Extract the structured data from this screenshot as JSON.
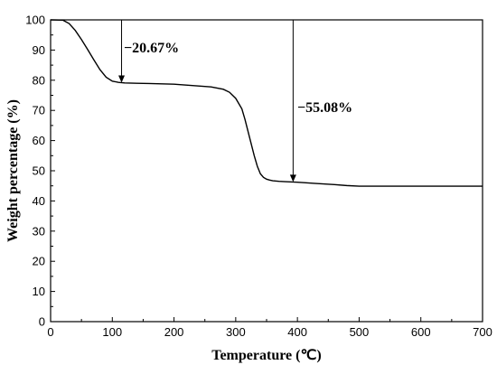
{
  "chart_data": {
    "type": "line",
    "title": "",
    "xlabel": "Temperature (℃)",
    "ylabel": "Weight percentage (%)",
    "xlim": [
      0,
      700
    ],
    "ylim": [
      0,
      100
    ],
    "x_ticks": [
      0,
      100,
      200,
      300,
      400,
      500,
      600,
      700
    ],
    "y_ticks": [
      0,
      10,
      20,
      30,
      40,
      50,
      60,
      70,
      80,
      90,
      100
    ],
    "grid": false,
    "legend": "none",
    "series": [
      {
        "color": "#000000",
        "x": [
          0,
          20,
          30,
          40,
          50,
          60,
          70,
          80,
          90,
          100,
          110,
          120,
          140,
          160,
          180,
          200,
          220,
          240,
          260,
          280,
          290,
          300,
          310,
          315,
          320,
          325,
          330,
          335,
          340,
          345,
          350,
          355,
          360,
          370,
          380,
          400,
          430,
          460,
          480,
          500,
          550,
          600,
          650,
          700
        ],
        "y": [
          100,
          99.9,
          98.8,
          96.5,
          93.5,
          90.2,
          86.8,
          83.5,
          81.0,
          79.7,
          79.3,
          79.1,
          79.0,
          78.9,
          78.8,
          78.7,
          78.4,
          78.1,
          77.8,
          77.0,
          76.0,
          74.0,
          70.5,
          67.0,
          63.0,
          59.0,
          55.0,
          51.5,
          49.0,
          47.8,
          47.2,
          46.9,
          46.7,
          46.5,
          46.4,
          46.2,
          45.8,
          45.4,
          45.1,
          44.9,
          44.9,
          44.9,
          44.9,
          44.9
        ]
      }
    ],
    "annotations": [
      {
        "text": "−20.67%",
        "arrow_x": 115,
        "arrow_from_y": 100,
        "arrow_to_y": 79.2
      },
      {
        "text": "−55.08%",
        "arrow_x": 393,
        "arrow_from_y": 100,
        "arrow_to_y": 46.3
      }
    ],
    "reference_line": {
      "y": 100,
      "x_from": 0,
      "x_to": 410
    }
  }
}
